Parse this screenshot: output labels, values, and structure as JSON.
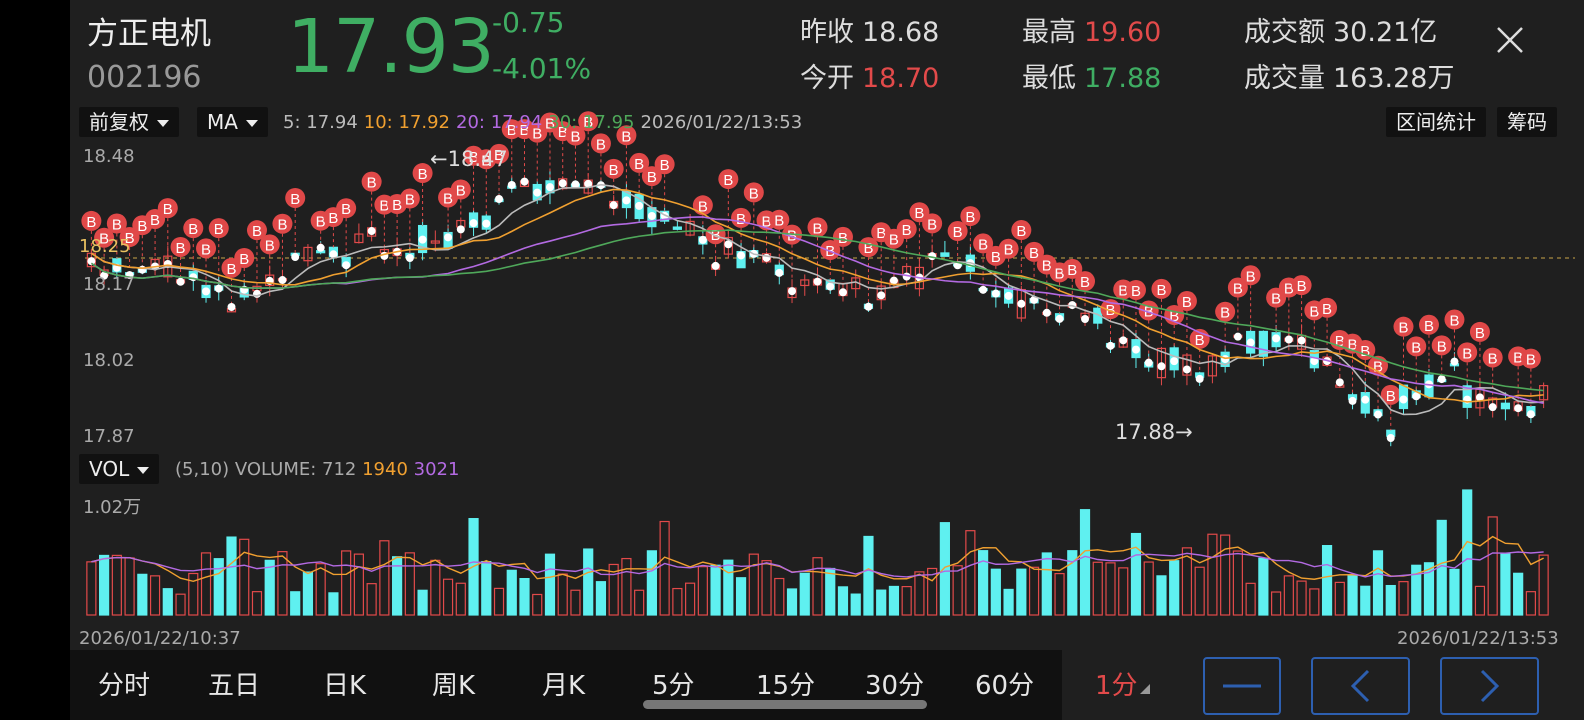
{
  "stock": {
    "name": "方正电机",
    "code": "002196",
    "price": "17.93",
    "change": "-0.75",
    "change_pct": "-4.01%"
  },
  "stats": [
    {
      "label": "昨收",
      "value": "18.68",
      "color": "#dddddd"
    },
    {
      "label": "今开",
      "value": "18.70",
      "color": "#e24a4a"
    },
    {
      "label": "最高",
      "value": "19.60",
      "color": "#e24a4a"
    },
    {
      "label": "最低",
      "value": "17.88",
      "color": "#3fae63"
    },
    {
      "label": "成交额",
      "value": "30.21亿",
      "color": "#dddddd"
    },
    {
      "label": "成交量",
      "value": "163.28万",
      "color": "#dddddd"
    }
  ],
  "toolbar": {
    "adjust": "前复权",
    "indicator": "MA",
    "interval_stats": "区间统计",
    "chips": "筹码"
  },
  "ma": {
    "ma5": "5: 17.94",
    "ma10": "10: 17.92",
    "ma20": "20: 17.94",
    "ma30": "30: 17.95",
    "datetime": "2026/01/22/13:53",
    "colors": {
      "ma5": "#bbbbbb",
      "ma10": "#f0a030",
      "ma20": "#b36ae2",
      "ma30": "#4fa85a"
    }
  },
  "price_axis": {
    "p1": "18.48",
    "p2": "18.25",
    "p3": "18.17",
    "p4": "18.02",
    "p5": "17.87"
  },
  "annotations": {
    "high": "←18.47",
    "low": "17.88→",
    "buy_marker": "B"
  },
  "volume": {
    "selector": "VOL",
    "params": "(5,10) VOLUME: 712",
    "ma5": "1940",
    "ma10": "3021",
    "axis_max": "1.02万"
  },
  "time_axis": {
    "start": "2026/01/22/10:37",
    "end": "2026/01/22/13:53"
  },
  "tabs": [
    "分时",
    "五日",
    "日K",
    "周K",
    "月K",
    "5分",
    "15分",
    "30分",
    "60分"
  ],
  "active_period": "1分",
  "colors": {
    "up": "#e24a4a",
    "down": "#5ff0f0",
    "accent": "#2d5fb0"
  }
}
